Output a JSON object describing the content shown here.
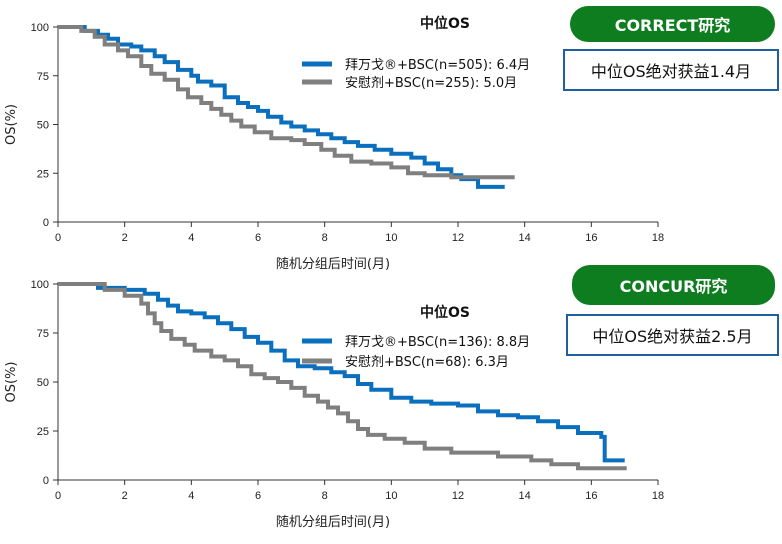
{
  "charts": [
    {
      "trial_badge": "CORRECT研究",
      "benefit_text": "中位OS绝对获益1.4月",
      "chart_data": {
        "type": "line",
        "title": "中位OS",
        "xlabel": "随机分组后时间(月)",
        "ylabel": "OS(%)",
        "xlim": [
          0,
          18
        ],
        "ylim": [
          0,
          100
        ],
        "xticks": [
          0,
          2,
          4,
          6,
          8,
          10,
          12,
          14,
          16,
          18
        ],
        "yticks": [
          0,
          25,
          50,
          75,
          100
        ],
        "legend": "top-right",
        "series": [
          {
            "name": "拜万戈®+BSC(n=505): 6.4月",
            "color": "#0a6fbd",
            "points": [
              [
                0,
                100
              ],
              [
                0.8,
                98
              ],
              [
                1.2,
                96
              ],
              [
                1.5,
                94
              ],
              [
                1.8,
                91
              ],
              [
                2.2,
                90
              ],
              [
                2.5,
                88
              ],
              [
                2.9,
                85
              ],
              [
                3.2,
                82
              ],
              [
                3.6,
                78
              ],
              [
                4,
                75
              ],
              [
                4.2,
                72
              ],
              [
                4.6,
                70
              ],
              [
                5,
                64
              ],
              [
                5.4,
                61
              ],
              [
                5.7,
                59
              ],
              [
                6,
                57
              ],
              [
                6.3,
                54
              ],
              [
                6.7,
                51
              ],
              [
                7,
                49
              ],
              [
                7.4,
                47
              ],
              [
                7.8,
                45
              ],
              [
                8.2,
                43
              ],
              [
                8.6,
                41
              ],
              [
                9,
                39
              ],
              [
                9.5,
                37
              ],
              [
                10,
                35
              ],
              [
                10.6,
                33
              ],
              [
                11,
                30
              ],
              [
                11.4,
                27
              ],
              [
                11.8,
                24
              ],
              [
                12.1,
                22
              ],
              [
                12.6,
                18
              ],
              [
                13.4,
                18
              ]
            ]
          },
          {
            "name": "安慰剂+BSC(n=255): 5.0月",
            "color": "#7f7f7f",
            "points": [
              [
                0,
                100
              ],
              [
                0.7,
                98
              ],
              [
                1.1,
                95
              ],
              [
                1.4,
                91
              ],
              [
                1.8,
                88
              ],
              [
                2.1,
                85
              ],
              [
                2.5,
                80
              ],
              [
                2.8,
                76
              ],
              [
                3.2,
                73
              ],
              [
                3.6,
                68
              ],
              [
                3.9,
                64
              ],
              [
                4.3,
                61
              ],
              [
                4.6,
                58
              ],
              [
                4.9,
                55
              ],
              [
                5.2,
                52
              ],
              [
                5.5,
                49
              ],
              [
                5.9,
                46
              ],
              [
                6.4,
                43
              ],
              [
                7,
                42
              ],
              [
                7.4,
                40
              ],
              [
                7.9,
                37
              ],
              [
                8.3,
                34
              ],
              [
                8.8,
                31
              ],
              [
                9.4,
                30
              ],
              [
                10,
                28
              ],
              [
                10.5,
                25
              ],
              [
                11,
                24
              ],
              [
                11.8,
                23
              ],
              [
                13.7,
                23
              ]
            ]
          }
        ]
      }
    },
    {
      "trial_badge": "CONCUR研究",
      "benefit_text": "中位OS绝对获益2.5月",
      "chart_data": {
        "type": "line",
        "title": "中位OS",
        "xlabel": "随机分组后时间(月)",
        "ylabel": "OS(%)",
        "xlim": [
          0,
          18
        ],
        "ylim": [
          0,
          100
        ],
        "xticks": [
          0,
          2,
          4,
          6,
          8,
          10,
          12,
          14,
          16,
          18
        ],
        "yticks": [
          0,
          25,
          50,
          75,
          100
        ],
        "legend": "right",
        "series": [
          {
            "name": "拜万戈®+BSC(n=136): 8.8月",
            "color": "#0a6fbd",
            "points": [
              [
                0,
                100
              ],
              [
                1.2,
                98
              ],
              [
                2,
                97
              ],
              [
                2.6,
                95
              ],
              [
                3,
                92
              ],
              [
                3.3,
                89
              ],
              [
                3.6,
                86
              ],
              [
                4,
                85
              ],
              [
                4.4,
                83
              ],
              [
                4.8,
                80
              ],
              [
                5.2,
                77
              ],
              [
                5.6,
                73
              ],
              [
                6,
                70
              ],
              [
                6.4,
                66
              ],
              [
                6.8,
                61
              ],
              [
                7.2,
                58
              ],
              [
                7.7,
                57
              ],
              [
                8.2,
                55
              ],
              [
                8.6,
                53
              ],
              [
                9,
                49
              ],
              [
                9.4,
                46
              ],
              [
                10,
                42
              ],
              [
                10.6,
                40
              ],
              [
                11.2,
                39
              ],
              [
                12,
                38
              ],
              [
                12.6,
                35
              ],
              [
                13.2,
                33
              ],
              [
                13.8,
                32
              ],
              [
                14.4,
                30
              ],
              [
                15,
                27
              ],
              [
                15.6,
                24
              ],
              [
                16.3,
                22
              ],
              [
                16.4,
                10
              ],
              [
                17,
                10
              ]
            ]
          },
          {
            "name": "安慰剂+BSC(n=68): 6.3月",
            "color": "#7f7f7f",
            "points": [
              [
                0,
                100
              ],
              [
                1.2,
                100
              ],
              [
                1.4,
                97
              ],
              [
                2,
                94
              ],
              [
                2.5,
                90
              ],
              [
                2.7,
                85
              ],
              [
                2.9,
                80
              ],
              [
                3.1,
                76
              ],
              [
                3.4,
                72
              ],
              [
                3.8,
                69
              ],
              [
                4.1,
                66
              ],
              [
                4.6,
                63
              ],
              [
                5,
                61
              ],
              [
                5.4,
                58
              ],
              [
                5.8,
                54
              ],
              [
                6.2,
                52
              ],
              [
                6.6,
                50
              ],
              [
                7,
                47
              ],
              [
                7.4,
                43
              ],
              [
                7.8,
                40
              ],
              [
                8.1,
                37
              ],
              [
                8.4,
                34
              ],
              [
                8.7,
                30
              ],
              [
                9,
                26
              ],
              [
                9.3,
                23
              ],
              [
                9.8,
                21
              ],
              [
                10.4,
                19
              ],
              [
                11,
                16
              ],
              [
                11.8,
                14
              ],
              [
                13.2,
                12
              ],
              [
                14.2,
                10
              ],
              [
                14.8,
                8
              ],
              [
                15.6,
                6
              ],
              [
                17,
                5
              ]
            ]
          }
        ]
      }
    }
  ]
}
